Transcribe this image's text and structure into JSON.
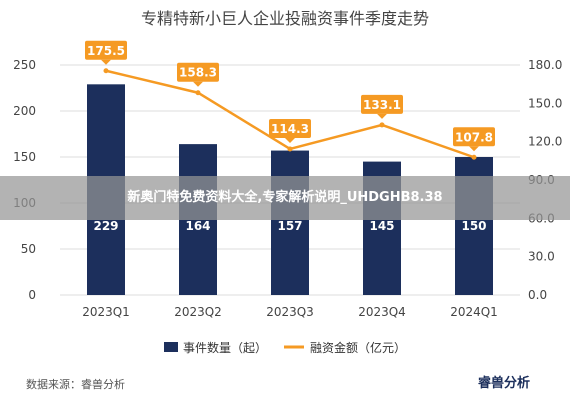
{
  "overlay": {
    "banner_text": "新奥门特免费资料大全,专家解析说明_UHDGHB8.38"
  },
  "footer": {
    "source": "数据来源：睿兽分析",
    "logo_text": "睿兽分析"
  },
  "colors": {
    "bar": "#1c2f5c",
    "line": "#f59a23",
    "grid": "#dddddd"
  },
  "chart_data": {
    "type": "bar",
    "title": "专精特新小巨人企业投融资事件季度走势",
    "categories": [
      "2023Q1",
      "2023Q2",
      "2023Q3",
      "2023Q4",
      "2024Q1"
    ],
    "series": [
      {
        "name": "事件数量（起）",
        "type": "bar",
        "axis": "left",
        "values": [
          229,
          164,
          157,
          145,
          150
        ],
        "value_labels": [
          "229",
          "164",
          "157",
          "145",
          "150"
        ]
      },
      {
        "name": "融资金额（亿元）",
        "type": "line",
        "axis": "right",
        "values": [
          175.5,
          158.3,
          114.3,
          133.1,
          107.8
        ],
        "value_labels": [
          "175.5",
          "158.3",
          "114.3",
          "133.1",
          "107.8"
        ]
      }
    ],
    "left_axis": {
      "ylim": [
        0,
        250
      ],
      "ticks": [
        "0",
        "50",
        "100",
        "150",
        "200",
        "250"
      ]
    },
    "right_axis": {
      "ylim": [
        0,
        180
      ],
      "ticks": [
        "0.0",
        "30.0",
        "60.0",
        "90.0",
        "120.0",
        "150.0",
        "180.0"
      ]
    },
    "grid": true,
    "legend": "bottom"
  }
}
